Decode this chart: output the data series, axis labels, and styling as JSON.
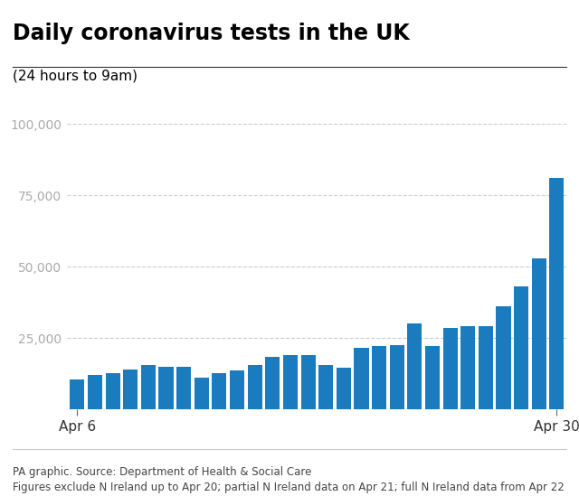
{
  "title": "Daily coronavirus tests in the UK",
  "subtitle": "(24 hours to 9am)",
  "footer_line1": "PA graphic. Source: Department of Health & Social Care",
  "footer_line2": "Figures exclude N Ireland up to Apr 20; partial N Ireland data on Apr 21; full N Ireland data from Apr 22",
  "bar_color": "#1a7bbf",
  "background_color": "#ffffff",
  "values": [
    10500,
    12000,
    12500,
    14000,
    15500,
    15000,
    15000,
    11000,
    12500,
    13500,
    15500,
    18500,
    19000,
    19000,
    15500,
    14500,
    21500,
    22000,
    22500,
    30000,
    22000,
    28500,
    29000,
    29000,
    36000,
    43000,
    53000,
    81000
  ],
  "x_tick_positions": [
    0,
    27
  ],
  "x_tick_labels": [
    "Apr 6",
    "Apr 30"
  ],
  "yticks": [
    25000,
    50000,
    75000,
    100000
  ],
  "ytick_labels": [
    "25,000",
    "50,000",
    "75,000",
    "100,000"
  ],
  "ylim": [
    0,
    100000
  ],
  "title_fontsize": 17,
  "subtitle_fontsize": 11,
  "tick_fontsize": 10,
  "footer_fontsize": 8.5,
  "grid_color": "#cccccc",
  "title_color": "#000000",
  "tick_color": "#aaaaaa",
  "xlabel_color": "#333333",
  "separator_color": "#333333"
}
